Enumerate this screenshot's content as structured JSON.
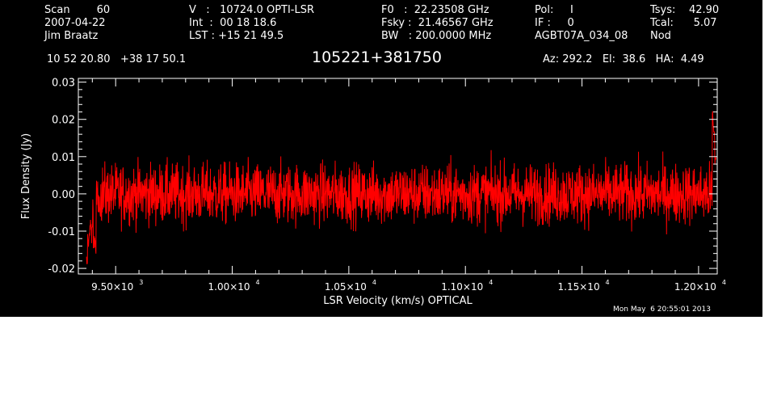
{
  "header": {
    "col1": {
      "line1": "Scan        60",
      "line2": "2007-04-22",
      "line3": "Jim Braatz"
    },
    "col2": {
      "line1": "V   :   10724.0 OPTI-LSR",
      "line2": "Int  :  00 18 18.6",
      "line3": "LST : +15 21 49.5"
    },
    "col3": {
      "line1": "F0   :  22.23508 GHz",
      "line2": "Fsky :  21.46567 GHz",
      "line3": "BW   : 200.0000 MHz"
    },
    "col4": {
      "line1": "Pol:     I",
      "line2": "IF :     0",
      "line3": "AGBT07A_034_08"
    },
    "col5": {
      "line1": "Tsys:    42.90",
      "line2": "Tcal:      5.07",
      "line3": "Nod"
    },
    "coords": "10 52 20.80   +38 17 50.1",
    "source": "105221+381750",
    "azelha": "Az: 292.2   El:  38.6   HA:  4.49",
    "timestamp": "Mon May  6 20:55:01 2013"
  },
  "chart_data": {
    "type": "line",
    "xlabel": "LSR Velocity (km/s) OPTICAL",
    "ylabel": "Flux Density (Jy)",
    "xlim": [
      9340,
      12080
    ],
    "ylim": [
      -0.0215,
      0.031
    ],
    "x_ticks": [
      9500,
      10000,
      10500,
      11000,
      11500,
      12000
    ],
    "x_tick_labels": [
      {
        "mant": "9.50×10",
        "exp": "3"
      },
      {
        "mant": "1.00×10",
        "exp": "4"
      },
      {
        "mant": "1.05×10",
        "exp": "4"
      },
      {
        "mant": "1.10×10",
        "exp": "4"
      },
      {
        "mant": "1.15×10",
        "exp": "4"
      },
      {
        "mant": "1.20×10",
        "exp": "4"
      }
    ],
    "y_ticks": [
      -0.02,
      -0.01,
      0.0,
      0.01,
      0.02,
      0.03
    ],
    "y_tick_labels": [
      "-0.02",
      "-0.01",
      "0.00",
      "0.01",
      "0.02",
      "0.03"
    ],
    "series": [
      {
        "color": "#ff0000",
        "x_start": 9375,
        "x_end": 12075,
        "baseline": 0.0,
        "noise_rms": 0.004,
        "features": [
          {
            "x": 9375,
            "y": -0.018
          },
          {
            "x": 9385,
            "y": -0.012
          },
          {
            "x": 9395,
            "y": -0.009
          },
          {
            "x": 9410,
            "y": -0.014
          },
          {
            "x": 9430,
            "y": -0.004
          },
          {
            "x": 12065,
            "y": 0.02
          },
          {
            "x": 12070,
            "y": 0.016
          },
          {
            "x": 12075,
            "y": 0.008
          }
        ]
      }
    ]
  }
}
